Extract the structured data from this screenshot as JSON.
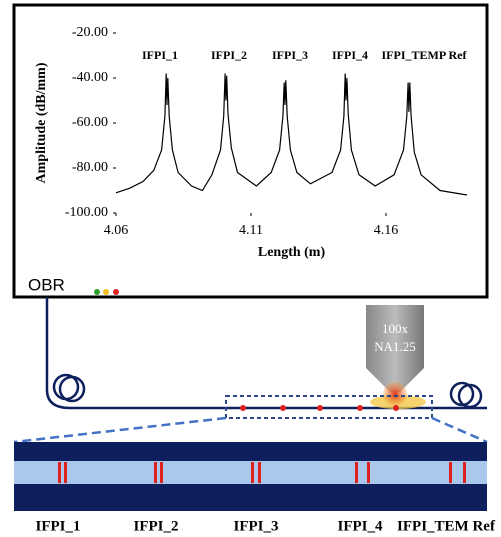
{
  "chart_data": {
    "type": "line",
    "xlabel": "Length (m)",
    "ylabel": "Amplitude (dB/mm)",
    "annotations": [
      "IFPI_1",
      "IFPI_2",
      "IFPI_3",
      "IFPI_4",
      "IFPI_TEMP Ref"
    ],
    "xlim": [
      4.06,
      4.19
    ],
    "xticks": [
      4.06,
      4.11,
      4.16
    ],
    "ylim": [
      -100,
      -20
    ],
    "yticks": [
      {
        "value": -100,
        "label": "-100.00"
      },
      {
        "value": -80,
        "label": "-80.00"
      },
      {
        "value": -60,
        "label": "-60.00"
      },
      {
        "value": -40,
        "label": "-40.00"
      },
      {
        "value": -20,
        "label": "-20.00"
      }
    ],
    "grid": false,
    "series": [
      {
        "color": "#000000",
        "x": [
          4.06,
          4.065,
          4.07,
          4.074,
          4.0769,
          4.0781,
          4.0786,
          4.0789,
          4.0792,
          4.0797,
          4.0809,
          4.083,
          4.088,
          4.092,
          4.0955,
          4.0987,
          4.0999,
          4.1004,
          4.1007,
          4.101,
          4.1015,
          4.1027,
          4.105,
          4.112,
          4.1175,
          4.1206,
          4.1218,
          4.1223,
          4.1226,
          4.1229,
          4.1234,
          4.1246,
          4.127,
          4.132,
          4.14,
          4.1432,
          4.1444,
          4.1449,
          4.1452,
          4.1455,
          4.146,
          4.1472,
          4.15,
          4.156,
          4.163,
          4.1665,
          4.1677,
          4.1682,
          4.1685,
          4.1688,
          4.1693,
          4.1705,
          4.173,
          4.18,
          4.19
        ],
        "values": [
          -91,
          -89,
          -86,
          -81,
          -72,
          -57,
          -38,
          -52,
          -40,
          -57,
          -72,
          -82,
          -88,
          -90,
          -83,
          -72,
          -57,
          -38,
          -50,
          -39,
          -56,
          -71,
          -82,
          -88,
          -82,
          -72,
          -57,
          -42,
          -52,
          -41,
          -57,
          -72,
          -82,
          -87,
          -82,
          -72,
          -57,
          -38,
          -50,
          -40,
          -56,
          -72,
          -83,
          -88,
          -83,
          -72,
          -57,
          -42,
          -55,
          -42,
          -57,
          -73,
          -83,
          -90,
          -92
        ]
      }
    ]
  },
  "diagram": {
    "device": "OBR",
    "objective": [
      "100x",
      "NA1.25"
    ],
    "sensors": [
      "IFPI_1",
      "IFPI_2",
      "IFPI_3",
      "IFPI_4",
      "IFPI_TEM Ref"
    ]
  }
}
